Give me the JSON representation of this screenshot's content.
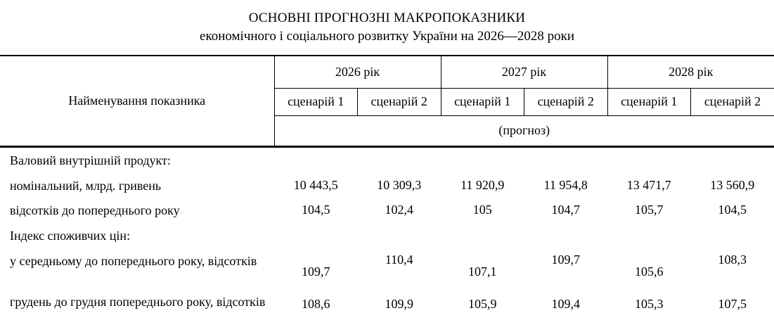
{
  "title": {
    "line1": "ОСНОВНІ ПРОГНОЗНІ МАКРОПОКАЗНИКИ",
    "line2": "економічного і соціального розвитку України на 2026—2028 роки"
  },
  "table": {
    "name_header": "Найменування показника",
    "years": [
      {
        "label": "2026 рік"
      },
      {
        "label": "2027 рік"
      },
      {
        "label": "2028 рік"
      }
    ],
    "scenarios": [
      "сценарій 1",
      "сценарій 2",
      "сценарій 1",
      "сценарій 2",
      "сценарій 1",
      "сценарій 2"
    ],
    "forecast_label": "(прогноз)",
    "rows": [
      {
        "label": "Валовий внутрішній продукт:",
        "type": "section"
      },
      {
        "label": "номінальний, млрд. гривень",
        "values": [
          "10 443,5",
          "10 309,3",
          "11 920,9",
          "11 954,8",
          "13 471,7",
          "13 560,9"
        ]
      },
      {
        "label": "відсотків до попереднього року",
        "values": [
          "104,5",
          "102,4",
          "105",
          "104,7",
          "105,7",
          "104,5"
        ]
      },
      {
        "label": "Індекс споживчих цін:",
        "type": "section"
      },
      {
        "label": "у середньому до попереднього року, відсотків",
        "values": [
          "109,7",
          "110,4",
          "107,1",
          "109,7",
          "105,6",
          "108,3"
        ]
      },
      {
        "label": "грудень до грудня попереднього року, відсотків",
        "values": [
          "108,6",
          "109,9",
          "105,9",
          "109,4",
          "105,3",
          "107,5"
        ]
      }
    ]
  }
}
